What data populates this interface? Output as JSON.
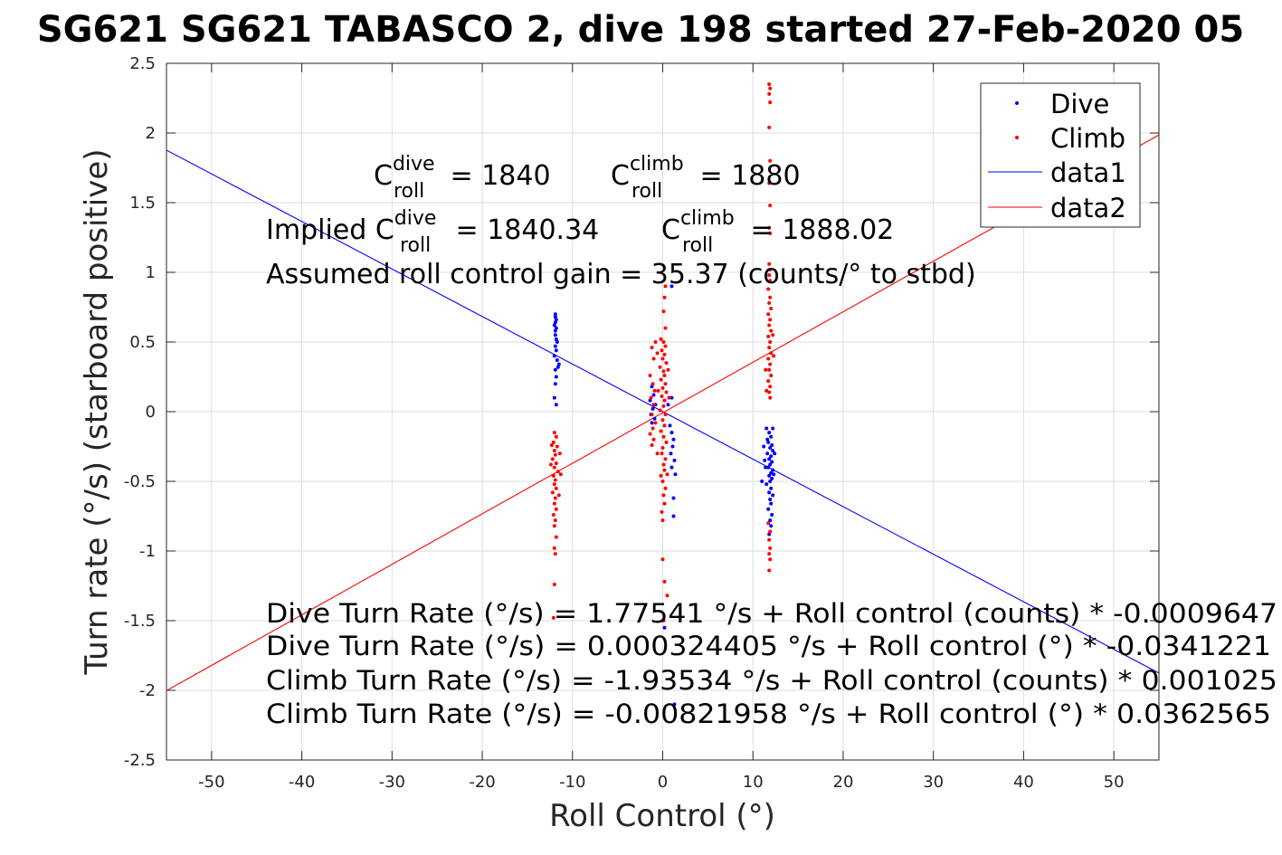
{
  "chart_data": {
    "type": "scatter",
    "title": "SG621 SG621 TABASCO 2, dive 198 started 27-Feb-2020 05",
    "xlabel": "Roll Control (°)",
    "ylabel": "Turn rate (°/s) (starboard positive)",
    "xlim": [
      -55,
      55
    ],
    "ylim": [
      -2.5,
      2.5
    ],
    "xticks": [
      -50,
      -40,
      -30,
      -20,
      -10,
      0,
      10,
      20,
      30,
      40,
      50
    ],
    "yticks": [
      -2.5,
      -2,
      -1.5,
      -1,
      -0.5,
      0,
      0.5,
      1,
      1.5,
      2,
      2.5
    ],
    "xtick_labels": [
      "-50",
      "-40",
      "-30",
      "-20",
      "-10",
      "0",
      "10",
      "20",
      "30",
      "40",
      "50"
    ],
    "ytick_labels": [
      "-2.5",
      "-2",
      "-1.5",
      "-1",
      "-0.5",
      "0",
      "0.5",
      "1",
      "1.5",
      "2",
      "2.5"
    ],
    "grid": true,
    "legend_position": "top-right",
    "colors": {
      "dive": "#0000ff",
      "climb": "#ff0000"
    },
    "series": [
      {
        "name": "Dive",
        "kind": "points",
        "color": "#0000ff",
        "points": [
          [
            -11.9,
            0.7
          ],
          [
            -11.9,
            0.68
          ],
          [
            -11.8,
            0.66
          ],
          [
            -11.9,
            0.64
          ],
          [
            -12.0,
            0.62
          ],
          [
            -11.8,
            0.6
          ],
          [
            -11.9,
            0.58
          ],
          [
            -11.9,
            0.55
          ],
          [
            -11.8,
            0.52
          ],
          [
            -11.7,
            0.5
          ],
          [
            -11.9,
            0.47
          ],
          [
            -11.8,
            0.44
          ],
          [
            -12.0,
            0.4
          ],
          [
            -11.7,
            0.37
          ],
          [
            -11.5,
            0.34
          ],
          [
            -11.6,
            0.32
          ],
          [
            -11.9,
            0.3
          ],
          [
            -11.8,
            0.25
          ],
          [
            -11.9,
            0.2
          ],
          [
            -12.0,
            0.1
          ],
          [
            -11.8,
            0.05
          ],
          [
            11.5,
            -0.12
          ],
          [
            11.8,
            -0.15
          ],
          [
            12.0,
            -0.18
          ],
          [
            11.7,
            -0.22
          ],
          [
            12.1,
            -0.24
          ],
          [
            11.9,
            -0.26
          ],
          [
            12.2,
            -0.28
          ],
          [
            11.6,
            -0.3
          ],
          [
            12.0,
            -0.32
          ],
          [
            11.8,
            -0.34
          ],
          [
            12.1,
            -0.36
          ],
          [
            11.9,
            -0.38
          ],
          [
            11.7,
            -0.4
          ],
          [
            12.2,
            -0.42
          ],
          [
            12.0,
            -0.44
          ],
          [
            11.8,
            -0.46
          ],
          [
            12.1,
            -0.48
          ],
          [
            11.9,
            -0.5
          ],
          [
            11.5,
            -0.52
          ],
          [
            12.0,
            -0.55
          ],
          [
            11.8,
            -0.58
          ],
          [
            12.2,
            -0.6
          ],
          [
            11.9,
            -0.63
          ],
          [
            12.0,
            -0.66
          ],
          [
            11.7,
            -0.7
          ],
          [
            12.1,
            -0.74
          ],
          [
            11.9,
            -0.78
          ],
          [
            12.0,
            -0.82
          ],
          [
            11.8,
            -0.88
          ],
          [
            11.2,
            -0.25
          ],
          [
            11.0,
            -0.5
          ],
          [
            11.4,
            -0.4
          ],
          [
            12.4,
            -0.3
          ],
          [
            12.3,
            -0.45
          ],
          [
            11.6,
            -0.2
          ],
          [
            12.2,
            -0.12
          ],
          [
            11.3,
            -0.35
          ],
          [
            -1.2,
            0.18
          ],
          [
            -1.0,
            0.12
          ],
          [
            -1.4,
            0.08
          ],
          [
            -0.8,
            0.05
          ],
          [
            -1.1,
            0.02
          ],
          [
            -1.3,
            -0.02
          ],
          [
            -0.9,
            -0.05
          ],
          [
            -1.2,
            -0.08
          ],
          [
            0.8,
            -0.1
          ],
          [
            1.0,
            -0.15
          ],
          [
            1.2,
            -0.2
          ],
          [
            1.1,
            -0.25
          ],
          [
            0.9,
            -0.3
          ],
          [
            1.3,
            -0.35
          ],
          [
            1.0,
            -0.4
          ],
          [
            1.4,
            -0.45
          ],
          [
            1.2,
            -0.62
          ],
          [
            1.2,
            -0.75
          ],
          [
            1.0,
            0.1
          ],
          [
            0.6,
            0.05
          ],
          [
            1.0,
            0.9
          ],
          [
            1.3,
            -2.1
          ],
          [
            0.2,
            -1.55
          ]
        ]
      },
      {
        "name": "Climb",
        "kind": "points",
        "color": "#ff0000",
        "points": [
          [
            11.8,
            2.35
          ],
          [
            11.9,
            2.32
          ],
          [
            11.8,
            2.28
          ],
          [
            11.9,
            2.22
          ],
          [
            11.8,
            2.04
          ],
          [
            11.9,
            1.8
          ],
          [
            11.8,
            1.64
          ],
          [
            11.9,
            1.48
          ],
          [
            11.8,
            1.32
          ],
          [
            11.9,
            1.28
          ],
          [
            11.8,
            1.06
          ],
          [
            11.9,
            1.02
          ],
          [
            11.8,
            0.98
          ],
          [
            11.9,
            0.94
          ],
          [
            11.7,
            0.88
          ],
          [
            11.9,
            0.82
          ],
          [
            11.8,
            0.78
          ],
          [
            12.0,
            0.74
          ],
          [
            11.7,
            0.7
          ],
          [
            11.9,
            0.66
          ],
          [
            11.8,
            0.62
          ],
          [
            12.0,
            0.58
          ],
          [
            11.7,
            0.54
          ],
          [
            11.9,
            0.5
          ],
          [
            11.8,
            0.46
          ],
          [
            12.0,
            0.42
          ],
          [
            11.7,
            0.38
          ],
          [
            11.9,
            0.34
          ],
          [
            11.8,
            0.3
          ],
          [
            12.0,
            0.26
          ],
          [
            11.7,
            0.22
          ],
          [
            11.9,
            0.18
          ],
          [
            11.8,
            0.14
          ],
          [
            11.9,
            0.1
          ],
          [
            11.4,
            0.3
          ],
          [
            12.3,
            0.4
          ],
          [
            11.5,
            0.15
          ],
          [
            12.2,
            0.55
          ],
          [
            11.7,
            -0.8
          ],
          [
            11.9,
            -0.86
          ],
          [
            11.8,
            -0.92
          ],
          [
            11.9,
            -0.98
          ],
          [
            11.8,
            -1.02
          ],
          [
            11.9,
            -1.06
          ],
          [
            11.8,
            -1.14
          ],
          [
            -12.0,
            -0.15
          ],
          [
            -11.8,
            -0.18
          ],
          [
            -12.1,
            -0.22
          ],
          [
            -11.7,
            -0.25
          ],
          [
            -12.0,
            -0.28
          ],
          [
            -11.9,
            -0.31
          ],
          [
            -12.2,
            -0.34
          ],
          [
            -11.8,
            -0.37
          ],
          [
            -12.0,
            -0.4
          ],
          [
            -11.6,
            -0.43
          ],
          [
            -12.1,
            -0.46
          ],
          [
            -11.9,
            -0.49
          ],
          [
            -12.0,
            -0.52
          ],
          [
            -11.8,
            -0.55
          ],
          [
            -12.2,
            -0.58
          ],
          [
            -11.9,
            -0.62
          ],
          [
            -12.0,
            -0.66
          ],
          [
            -11.8,
            -0.7
          ],
          [
            -12.1,
            -0.74
          ],
          [
            -11.9,
            -0.78
          ],
          [
            -12.0,
            -0.82
          ],
          [
            -11.8,
            -0.9
          ],
          [
            -12.0,
            -0.98
          ],
          [
            -11.9,
            -1.02
          ],
          [
            -12.0,
            -1.24
          ],
          [
            -12.1,
            -1.48
          ],
          [
            -11.4,
            -0.3
          ],
          [
            -11.3,
            -0.45
          ],
          [
            -12.4,
            -0.38
          ],
          [
            -12.3,
            -0.24
          ],
          [
            -11.5,
            -0.6
          ],
          [
            -1.2,
            0.46
          ],
          [
            -0.8,
            0.5
          ],
          [
            -0.6,
            0.42
          ],
          [
            -1.0,
            0.38
          ],
          [
            -1.4,
            0.26
          ],
          [
            -1.1,
            0.2
          ],
          [
            -0.9,
            0.15
          ],
          [
            -1.3,
            0.1
          ],
          [
            -1.0,
            0.05
          ],
          [
            -1.2,
            -0.02
          ],
          [
            -0.8,
            -0.08
          ],
          [
            -1.1,
            -0.12
          ],
          [
            -1.4,
            -0.16
          ],
          [
            -1.0,
            -0.2
          ],
          [
            -1.2,
            -0.24
          ],
          [
            -0.2,
            0.52
          ],
          [
            0.1,
            0.5
          ],
          [
            0.3,
            0.47
          ],
          [
            -0.1,
            0.44
          ],
          [
            0.2,
            0.41
          ],
          [
            0.0,
            0.38
          ],
          [
            0.4,
            0.35
          ],
          [
            -0.3,
            0.32
          ],
          [
            0.1,
            0.29
          ],
          [
            0.2,
            0.26
          ],
          [
            -0.2,
            0.23
          ],
          [
            0.3,
            0.2
          ],
          [
            0.0,
            0.17
          ],
          [
            0.4,
            0.14
          ],
          [
            -0.1,
            0.11
          ],
          [
            0.2,
            0.08
          ],
          [
            0.1,
            0.04
          ],
          [
            -0.3,
            0.01
          ],
          [
            0.3,
            -0.02
          ],
          [
            0.0,
            -0.06
          ],
          [
            0.2,
            -0.1
          ],
          [
            -0.2,
            -0.14
          ],
          [
            0.1,
            -0.18
          ],
          [
            0.4,
            -0.22
          ],
          [
            0.0,
            -0.26
          ],
          [
            -0.1,
            -0.3
          ],
          [
            0.3,
            -0.34
          ],
          [
            0.1,
            -0.38
          ],
          [
            0.2,
            -0.42
          ],
          [
            -0.2,
            -0.46
          ],
          [
            0.0,
            -0.5
          ],
          [
            0.3,
            -0.55
          ],
          [
            0.1,
            -0.6
          ],
          [
            0.2,
            -0.66
          ],
          [
            -0.1,
            -0.72
          ],
          [
            0.0,
            -0.78
          ],
          [
            0.3,
            0.6
          ],
          [
            0.1,
            0.72
          ],
          [
            0.2,
            0.82
          ],
          [
            0.3,
            0.9
          ],
          [
            0.6,
            0.3
          ],
          [
            0.7,
            0.1
          ],
          [
            -0.5,
            0.15
          ],
          [
            -0.6,
            -0.3
          ],
          [
            0.5,
            -0.45
          ],
          [
            0.0,
            -1.06
          ],
          [
            0.2,
            -1.22
          ],
          [
            0.5,
            -1.32
          ],
          [
            0.1,
            -1.5
          ]
        ]
      },
      {
        "name": "data1",
        "kind": "line",
        "color": "#0000ff",
        "x": [
          -55,
          55
        ],
        "y": [
          1.877,
          -1.876
        ]
      },
      {
        "name": "data2",
        "kind": "line",
        "color": "#ff0000",
        "x": [
          -55,
          55
        ],
        "y": [
          -2.002,
          1.986
        ]
      }
    ],
    "annotations": {
      "c_dive_prefix": "C",
      "c_dive_sup": "dive",
      "c_dive_sub": "roll",
      "c_dive_value": " = 1840",
      "c_climb_prefix": "C",
      "c_climb_sup": "climb",
      "c_climb_sub": "roll",
      "c_climb_value": " = 1880",
      "implied_prefix": "Implied C",
      "implied_dive_sup": "dive",
      "implied_dive_sub": "roll",
      "implied_dive_value": " = 1840.34",
      "implied_climb_prefix": "C",
      "implied_climb_sup": "climb",
      "implied_climb_sub": "roll",
      "implied_climb_value": " = 1888.02",
      "gain": "Assumed roll control gain = 35.37 (counts/° to stbd)",
      "eq1": "Dive Turn Rate (°/s) = 1.77541 °/s + Roll control (counts) * -0.0009647",
      "eq2": "Dive Turn Rate (°/s) = 0.000324405 °/s + Roll control (°) * -0.0341221",
      "eq3": "Climb Turn Rate (°/s) = -1.93534 °/s + Roll control (counts) * 0.001025",
      "eq4": "Climb Turn Rate (°/s) = -0.00821958 °/s + Roll control (°) * 0.0362565"
    }
  }
}
